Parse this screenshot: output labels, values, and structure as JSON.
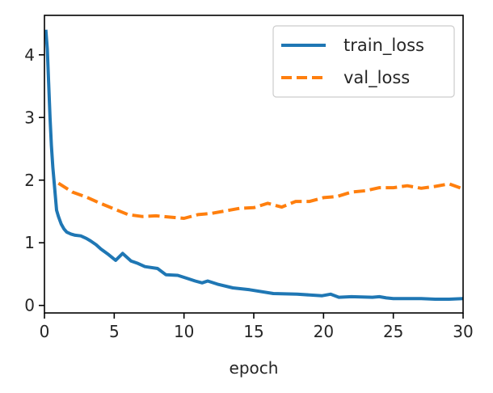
{
  "chart_data": {
    "type": "line",
    "title": "",
    "xlabel": "epoch",
    "ylabel": "",
    "xlim": [
      0,
      30
    ],
    "ylim": [
      -0.12,
      4.63
    ],
    "xticks": [
      0,
      5,
      10,
      15,
      20,
      25,
      30
    ],
    "xtick_labels": [
      "0",
      "5",
      "10",
      "15",
      "20",
      "25",
      "30"
    ],
    "yticks": [
      0,
      1,
      2,
      3,
      4
    ],
    "ytick_labels": [
      "0",
      "1",
      "2",
      "3",
      "4"
    ],
    "grid": false,
    "legend_position": "top-right",
    "series": [
      {
        "name": "train_loss",
        "color": "#1f77b4",
        "style": "solid",
        "x": [
          0.1,
          0.2,
          0.3,
          0.4,
          0.5,
          0.6,
          0.7,
          0.87,
          1.0,
          1.2,
          1.4,
          1.6,
          1.9,
          2.2,
          2.6,
          3.0,
          3.3,
          3.7,
          4.05,
          4.6,
          5.1,
          5.6,
          6.2,
          6.7,
          7.2,
          8.1,
          8.7,
          9.55,
          10.25,
          10.8,
          11.3,
          11.7,
          12.4,
          13.5,
          14.7,
          16.4,
          18.1,
          19.9,
          20.5,
          21.1,
          22.0,
          23.5,
          24.0,
          24.5,
          25.0,
          26.0,
          27.0,
          28.0,
          29.0,
          30.0
        ],
        "y": [
          4.4,
          4.1,
          3.55,
          3.0,
          2.55,
          2.2,
          1.95,
          1.52,
          1.42,
          1.3,
          1.22,
          1.17,
          1.14,
          1.12,
          1.11,
          1.07,
          1.03,
          0.97,
          0.9,
          0.81,
          0.72,
          0.83,
          0.71,
          0.67,
          0.62,
          0.59,
          0.49,
          0.48,
          0.43,
          0.39,
          0.36,
          0.39,
          0.34,
          0.28,
          0.25,
          0.19,
          0.18,
          0.155,
          0.18,
          0.13,
          0.14,
          0.13,
          0.14,
          0.12,
          0.11,
          0.11,
          0.11,
          0.1,
          0.1,
          0.11
        ]
      },
      {
        "name": "val_loss",
        "color": "#ff7f0e",
        "style": "dashed",
        "x": [
          1,
          2,
          3,
          4,
          5,
          6,
          7,
          8,
          9,
          10,
          11,
          12,
          13,
          14,
          15,
          16,
          17,
          18,
          19,
          20,
          21,
          22,
          23,
          24,
          25,
          26,
          27,
          28,
          29,
          30
        ],
        "y": [
          1.95,
          1.81,
          1.73,
          1.63,
          1.54,
          1.45,
          1.42,
          1.43,
          1.41,
          1.39,
          1.45,
          1.47,
          1.51,
          1.55,
          1.56,
          1.63,
          1.57,
          1.66,
          1.66,
          1.72,
          1.74,
          1.81,
          1.83,
          1.88,
          1.88,
          1.91,
          1.87,
          1.9,
          1.94,
          1.86
        ]
      }
    ]
  }
}
